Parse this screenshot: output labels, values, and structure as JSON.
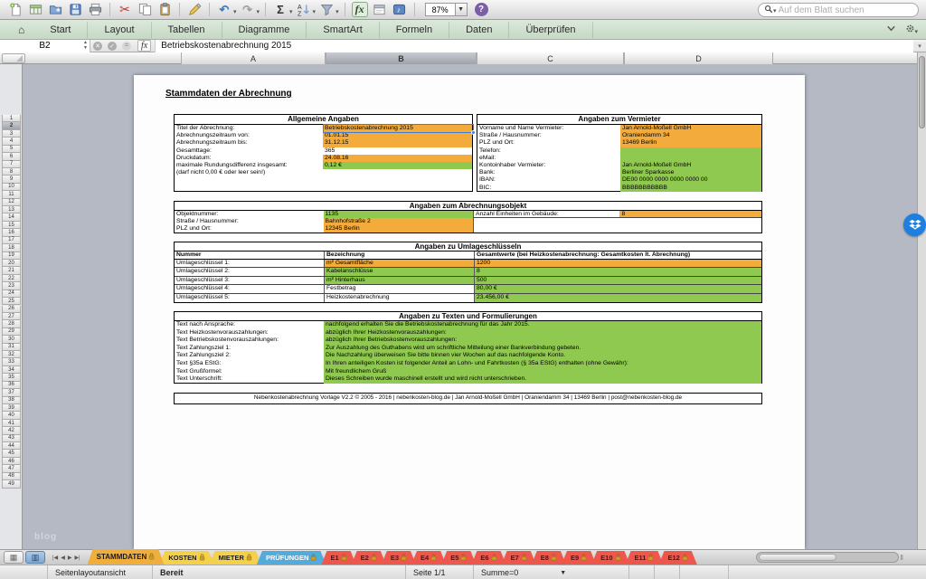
{
  "toolbar": {
    "icons": [
      {
        "name": "new-document"
      },
      {
        "name": "open-workbook"
      },
      {
        "name": "save-as"
      },
      {
        "name": "save"
      },
      {
        "name": "print"
      },
      {
        "name": "cut"
      },
      {
        "name": "copy"
      },
      {
        "name": "paste"
      },
      {
        "name": "format-painter"
      },
      {
        "name": "undo",
        "dropdown": true
      },
      {
        "name": "redo",
        "dropdown": true
      },
      {
        "name": "autosum",
        "dropdown": true
      },
      {
        "name": "sort",
        "dropdown": true
      },
      {
        "name": "filter",
        "dropdown": true
      },
      {
        "name": "formula-builder",
        "active": true
      },
      {
        "name": "toolbox"
      },
      {
        "name": "media-browser"
      }
    ],
    "zoom_value": "87%",
    "help_label": "?",
    "search_placeholder": "Auf dem Blatt suchen"
  },
  "ribbon": {
    "tabs": [
      "Start",
      "Layout",
      "Tabellen",
      "Diagramme",
      "SmartArt",
      "Formeln",
      "Daten",
      "Überprüfen"
    ]
  },
  "formula_bar": {
    "name_box": "B2",
    "fx_label": "fx",
    "content": "Betriebskostenabrechnung 2015"
  },
  "grid": {
    "columns": [
      "A",
      "B",
      "C",
      "D"
    ],
    "selected_column": "B",
    "row_first": 1,
    "row_last": 49,
    "selected_row": 2
  },
  "colors": {
    "input_orange": "#F3AB3B",
    "input_green": "#90C94F",
    "selection_blue": "#3E7FD4"
  },
  "sheet": {
    "title": "Stammdaten der Abrechnung",
    "table_allgemein": {
      "header": "Allgemeine Angaben",
      "rows": [
        {
          "label": "Titel der Abrechnung:",
          "value": "Betriebskostenabrechnung 2015",
          "bg": "orange",
          "selected": true
        },
        {
          "label": "Abrechnungszeitraum von:",
          "value": "01.01.15",
          "bg": "orange"
        },
        {
          "label": "Abrechnungszeitraum bis:",
          "value": "31.12.15",
          "bg": "orange"
        },
        {
          "label": "Gesamttage:",
          "value": "365",
          "bg": "white"
        },
        {
          "label": "Druckdatum:",
          "value": "24.08.16",
          "bg": "orange"
        },
        {
          "label": "maximale Rundungsdifferenz insgesamt:",
          "value": "0,12 €",
          "bg": "green"
        },
        {
          "label": "(darf nicht 0,00 € oder leer sein!)",
          "value": "",
          "bg": "none"
        },
        {
          "label": "",
          "value": "",
          "bg": "none"
        },
        {
          "label": "",
          "value": "",
          "bg": "none"
        }
      ]
    },
    "table_vermieter": {
      "header": "Angaben zum Vermieter",
      "rows": [
        {
          "label": "Vorname und Name Vermieter:",
          "value": "Jan Arnold-Moßell GmbH",
          "bg": "orange"
        },
        {
          "label": "Straße / Hausnummer:",
          "value": "Oraniendamm 34",
          "bg": "orange"
        },
        {
          "label": "PLZ und Ort:",
          "value": "13469 Berlin",
          "bg": "orange"
        },
        {
          "label": "Telefon:",
          "value": "",
          "bg": "green"
        },
        {
          "label": "eMail:",
          "value": "",
          "bg": "green"
        },
        {
          "label": "Kontoinhaber Vermieter:",
          "value": "Jan Arnold-Moßell GmbH",
          "bg": "green"
        },
        {
          "label": "Bank:",
          "value": "Berliner Sparkasse",
          "bg": "green"
        },
        {
          "label": "IBAN:",
          "value": "DE00 0000 0000 0000 0000 00",
          "bg": "green"
        },
        {
          "label": "BIC:",
          "value": "BBBBBBBBBBB",
          "bg": "green"
        }
      ]
    },
    "table_objekt": {
      "header": "Angaben zum Abrechnungsobjekt",
      "left_rows": [
        {
          "label": "Objektnummer:",
          "value": "1135",
          "bg": "green"
        },
        {
          "label": "Straße / Hausnummer:",
          "value": "Bahnhofstraße 2",
          "bg": "orange"
        },
        {
          "label": "PLZ und Ort:",
          "value": "12345 Berlin",
          "bg": "orange"
        }
      ],
      "right_rows": [
        {
          "label": "Anzahl Einheiten im Gebäude:",
          "value": "8",
          "bg": "orange"
        },
        {
          "label": "",
          "value": "",
          "bg": "none"
        },
        {
          "label": "",
          "value": "",
          "bg": "none"
        }
      ]
    },
    "table_umlage": {
      "header": "Angaben zu Umlageschlüsseln",
      "columns": [
        "Nummer",
        "Bezeichnung",
        "Gesamtwerte (bei Heizkostenabrechnung: Gesamtkosten lt. Abrechnung)"
      ],
      "rows": [
        {
          "nummer": "Umlageschlüssel 1:",
          "bezeichnung": "m² Gesamtfläche",
          "bez_bg": "orange",
          "wert": "1200",
          "wert_bg": "orange"
        },
        {
          "nummer": "Umlageschlüssel 2:",
          "bezeichnung": "Kabelanschlüsse",
          "bez_bg": "green",
          "wert": "8",
          "wert_bg": "green"
        },
        {
          "nummer": "Umlageschlüssel 3:",
          "bezeichnung": "m² Hinterhaus",
          "bez_bg": "green",
          "wert": "500",
          "wert_bg": "green"
        },
        {
          "nummer": "Umlageschlüssel 4:",
          "bezeichnung": "Festbetrag",
          "bez_bg": "white",
          "wert": "80,00 €",
          "wert_bg": "green"
        },
        {
          "nummer": "Umlageschlüssel 5:",
          "bezeichnung": "Heizkostenabrechnung",
          "bez_bg": "white",
          "wert": "23.456,00 €",
          "wert_bg": "green"
        }
      ]
    },
    "table_texte": {
      "header": "Angaben zu Texten und Formulierungen",
      "rows": [
        {
          "label": "Text nach Ansprache:",
          "value": "nachfolgend erhalten Sie die Betriebskostenabrechnung für das Jahr 2015.",
          "bg": "green"
        },
        {
          "label": "Text Heizkostenvorauszahlungen:",
          "value": "abzüglich Ihrer Heizkostenvorauszahlungen:",
          "bg": "green"
        },
        {
          "label": "Text Betriebskostenvorauszahlungen:",
          "value": "abzüglich Ihrer Betriebskostenvorauszahlungen:",
          "bg": "green"
        },
        {
          "label": "Text Zahlungsziel 1:",
          "value": "Zur Auszahlung des Guthabens wird um schriftliche Mitteilung einer Bankverbindung gebeten.",
          "bg": "green"
        },
        {
          "label": "Text Zahlungsziel 2:",
          "value": "Die Nachzahlung überweisen Sie bitte binnen vier Wochen auf das nachfolgende Konto.",
          "bg": "green"
        },
        {
          "label": "Text §35a EStG:",
          "value": "In Ihren anteiligen Kosten ist folgender Anteil an Lohn- und Fahrtkosten (§ 35a EStG) enthalten (ohne Gewähr):",
          "bg": "green"
        },
        {
          "label": "Text Grußformel:",
          "value": "Mit freundlichem Gruß",
          "bg": "green"
        },
        {
          "label": "Text Unterschrift:",
          "value": "Dieses Schreiben wurde maschinell erstellt und wird nicht unterschrieben.",
          "bg": "green"
        }
      ]
    },
    "footer": "Nebenkostenabrechnung Vorlage V2.2 © 2005 - 2016 | nebenkosten-blog.de | Jan Arnold-Moßell GmbH | Oraniendamm 34 | 13469 Berlin | post@nebenkosten-blog.de"
  },
  "sheet_tabs": [
    {
      "label": "STAMMDATEN",
      "color": "#F0AE3C",
      "text_color": "#1A1A1A",
      "active": true,
      "locked": true
    },
    {
      "label": "KOSTEN",
      "color": "#F5D04A",
      "text_color": "#1A1A1A",
      "locked": true
    },
    {
      "label": "MIETER",
      "color": "#F5D04A",
      "text_color": "#1A1A1A",
      "locked": true
    },
    {
      "label": "PRÜFUNGEN",
      "color": "#52ABDD",
      "text_color": "#FFFFFF",
      "locked": true
    },
    {
      "label": "E1",
      "color": "#EE584C",
      "text_color": "#5E0E08",
      "locked": true
    },
    {
      "label": "E2",
      "color": "#EE584C",
      "text_color": "#5E0E08",
      "locked": true
    },
    {
      "label": "E3",
      "color": "#EE584C",
      "text_color": "#5E0E08",
      "locked": true
    },
    {
      "label": "E4",
      "color": "#EE584C",
      "text_color": "#5E0E08",
      "locked": true
    },
    {
      "label": "E5",
      "color": "#EE584C",
      "text_color": "#5E0E08",
      "locked": true
    },
    {
      "label": "E6",
      "color": "#EE584C",
      "text_color": "#5E0E08",
      "locked": true
    },
    {
      "label": "E7",
      "color": "#EE584C",
      "text_color": "#5E0E08",
      "locked": true
    },
    {
      "label": "E8",
      "color": "#EE584C",
      "text_color": "#5E0E08",
      "locked": true
    },
    {
      "label": "E9",
      "color": "#EE584C",
      "text_color": "#5E0E08",
      "locked": true
    },
    {
      "label": "E10",
      "color": "#EE584C",
      "text_color": "#5E0E08",
      "locked": true
    },
    {
      "label": "E11",
      "color": "#EE584C",
      "text_color": "#5E0E08",
      "locked": true
    },
    {
      "label": "E12",
      "color": "#EE584C",
      "text_color": "#5E0E08",
      "locked": true
    }
  ],
  "status_bar": {
    "view_mode": "Seitenlayoutansicht",
    "status": "Bereit",
    "page_indicator": "Seite 1/1",
    "sum_indicator": "Summe=0"
  },
  "watermark": "blog"
}
